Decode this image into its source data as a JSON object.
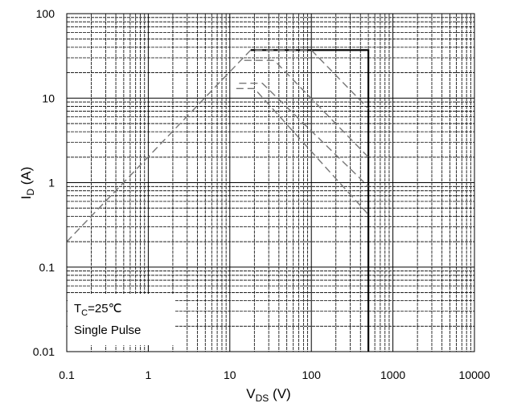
{
  "chart_data": {
    "type": "line",
    "x_scale": "log",
    "y_scale": "log",
    "xlim": [
      0.1,
      10000
    ],
    "ylim": [
      0.01,
      100
    ],
    "grid": true,
    "x_ticks": [
      "0.1",
      "1",
      "10",
      "100",
      "1000",
      "10000"
    ],
    "y_ticks": [
      "0.01",
      "0.1",
      "1",
      "10",
      "100"
    ],
    "xlabel": {
      "main": "V",
      "sub": "DS",
      "suffix": " (V)"
    },
    "ylabel": {
      "main": "I",
      "sub": "D",
      "suffix": " (A)"
    },
    "annotation": {
      "line1_main": "T",
      "line1_sub": "C",
      "line1_suffix": "=25℃",
      "line2": "Single Pulse"
    },
    "colors": {
      "boundary": "#000000",
      "dashed": "#777777",
      "grid": "#000000"
    },
    "series": [
      {
        "style": "solid",
        "points": [
          [
            18,
            37
          ],
          [
            500,
            37
          ],
          [
            500,
            0.01
          ]
        ]
      },
      {
        "style": "dashed",
        "points": [
          [
            0.1,
            0.2
          ],
          [
            18,
            37
          ],
          [
            100,
            37
          ],
          [
            500,
            7.5
          ]
        ]
      },
      {
        "style": "dashed",
        "points": [
          [
            15,
            28
          ],
          [
            35,
            28
          ],
          [
            500,
            2
          ]
        ]
      },
      {
        "style": "dashed",
        "points": [
          [
            13,
            15
          ],
          [
            25,
            15
          ],
          [
            500,
            0.9
          ]
        ]
      },
      {
        "style": "dashed",
        "points": [
          [
            12,
            13
          ],
          [
            20,
            13
          ],
          [
            500,
            0.42
          ]
        ]
      }
    ]
  }
}
